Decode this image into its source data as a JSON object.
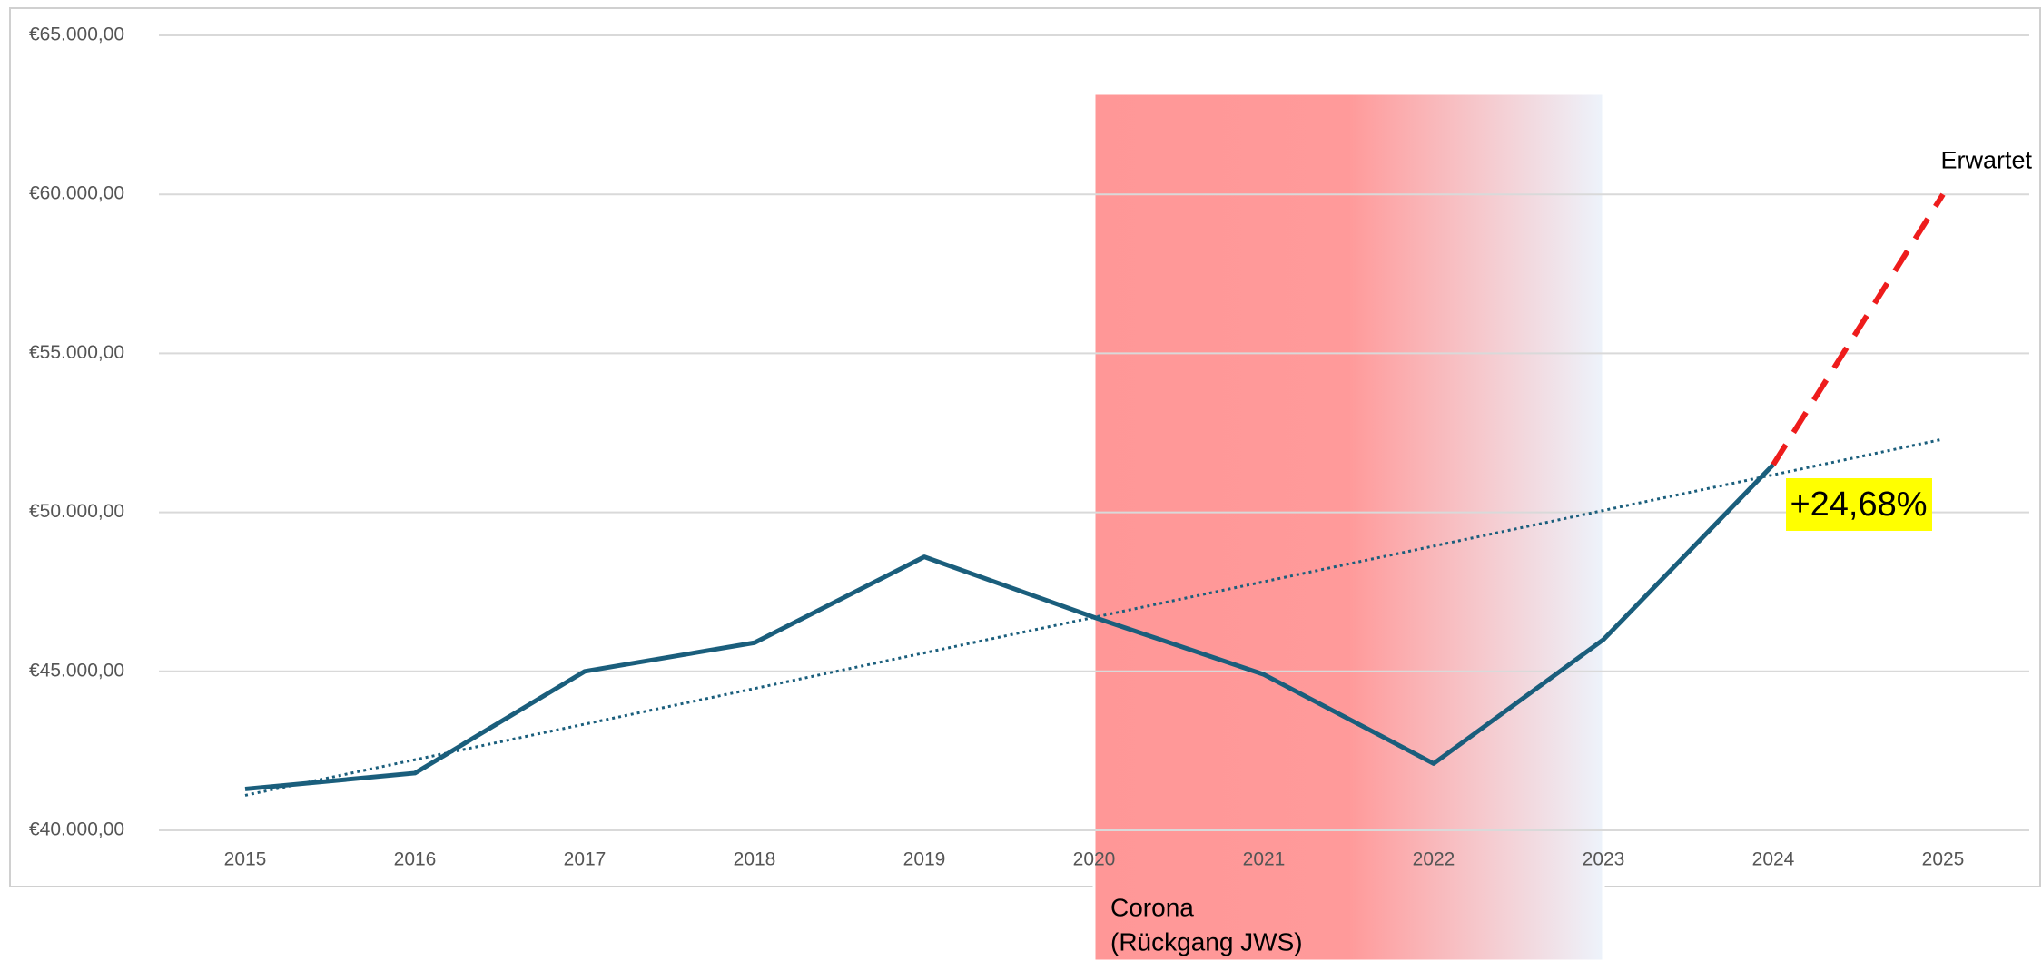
{
  "chart_data": {
    "type": "line",
    "categories": [
      "2015",
      "2016",
      "2017",
      "2018",
      "2019",
      "2020",
      "2021",
      "2022",
      "2023",
      "2024",
      "2025"
    ],
    "series": [
      {
        "color": "#1a5e7c",
        "values": [
          41300,
          41800,
          45000,
          45900,
          48600,
          46700,
          44900,
          42100,
          46000,
          51500,
          null
        ]
      },
      {
        "name": "Erwartet",
        "color": "#ee1c1c",
        "dashed": true,
        "values": [
          null,
          null,
          null,
          null,
          null,
          null,
          null,
          null,
          null,
          51500,
          60000
        ]
      }
    ],
    "trendline": {
      "color": "#1a5e7c",
      "values": [
        41100,
        52300
      ]
    },
    "ylim": [
      40000,
      65000
    ],
    "yticks": [
      {
        "value": 40000,
        "label": "€40.000,00"
      },
      {
        "value": 45000,
        "label": "€45.000,00"
      },
      {
        "value": 50000,
        "label": "€50.000,00"
      },
      {
        "value": 55000,
        "label": "€55.000,00"
      },
      {
        "value": 60000,
        "label": "€60.000,00"
      },
      {
        "value": 65000,
        "label": "€65.000,00"
      }
    ],
    "grid": true,
    "annotations": {
      "growth": "+24,68%",
      "corona": [
        "Corona",
        "(Rückgang JWS)"
      ]
    }
  }
}
